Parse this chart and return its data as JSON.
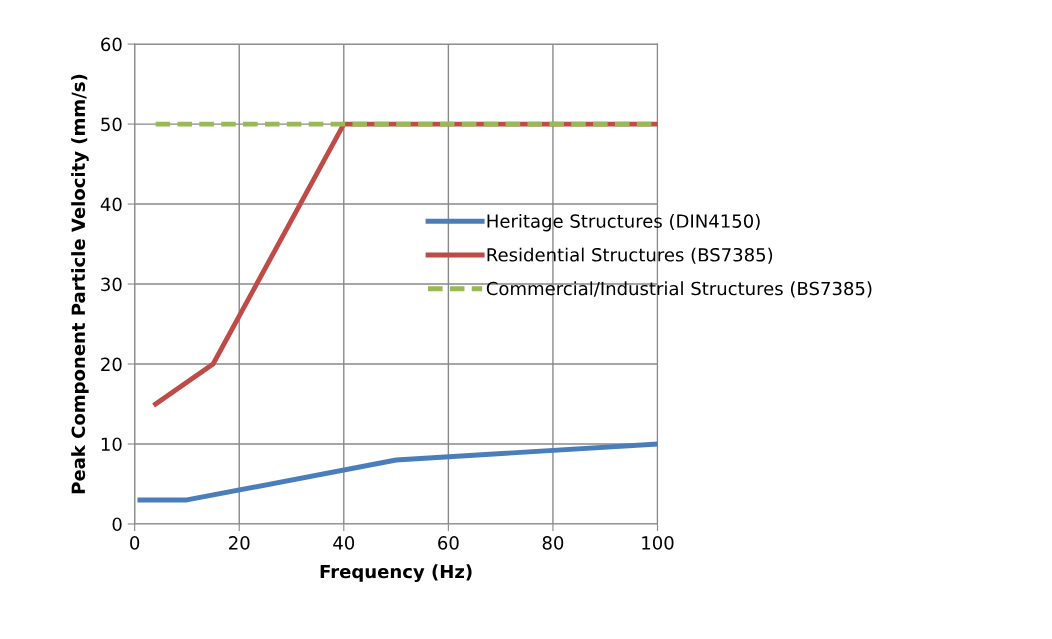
{
  "chart_data": {
    "type": "line",
    "xlabel": "Frequency (Hz)",
    "ylabel": "Peak Component Particle Velocity (mm/s)",
    "xlim": [
      0,
      100
    ],
    "xticks": [
      0,
      20,
      40,
      60,
      80,
      100
    ],
    "ylim": [
      0,
      60
    ],
    "yticks": [
      0,
      10,
      20,
      30,
      40,
      50,
      60
    ],
    "grid": true,
    "legend": "right",
    "marker": "none",
    "series": [
      {
        "name": "Heritage Structures (DIN4150)",
        "color": "#4a7ebb",
        "x": [
          1,
          10,
          50,
          100
        ],
        "values": [
          3,
          3,
          8,
          10
        ],
        "line_style": "solid"
      },
      {
        "name": "Residential Structures (BS7385)",
        "color": "#be4b48",
        "x": [
          4,
          15,
          40,
          100
        ],
        "values": [
          15,
          20,
          50,
          50
        ],
        "line_style": "solid"
      },
      {
        "name": "Commercial/Industrial Structures (BS7385)",
        "color": "#98b954",
        "x": [
          4,
          100
        ],
        "values": [
          50,
          50
        ],
        "line_style": "dashed"
      }
    ]
  }
}
